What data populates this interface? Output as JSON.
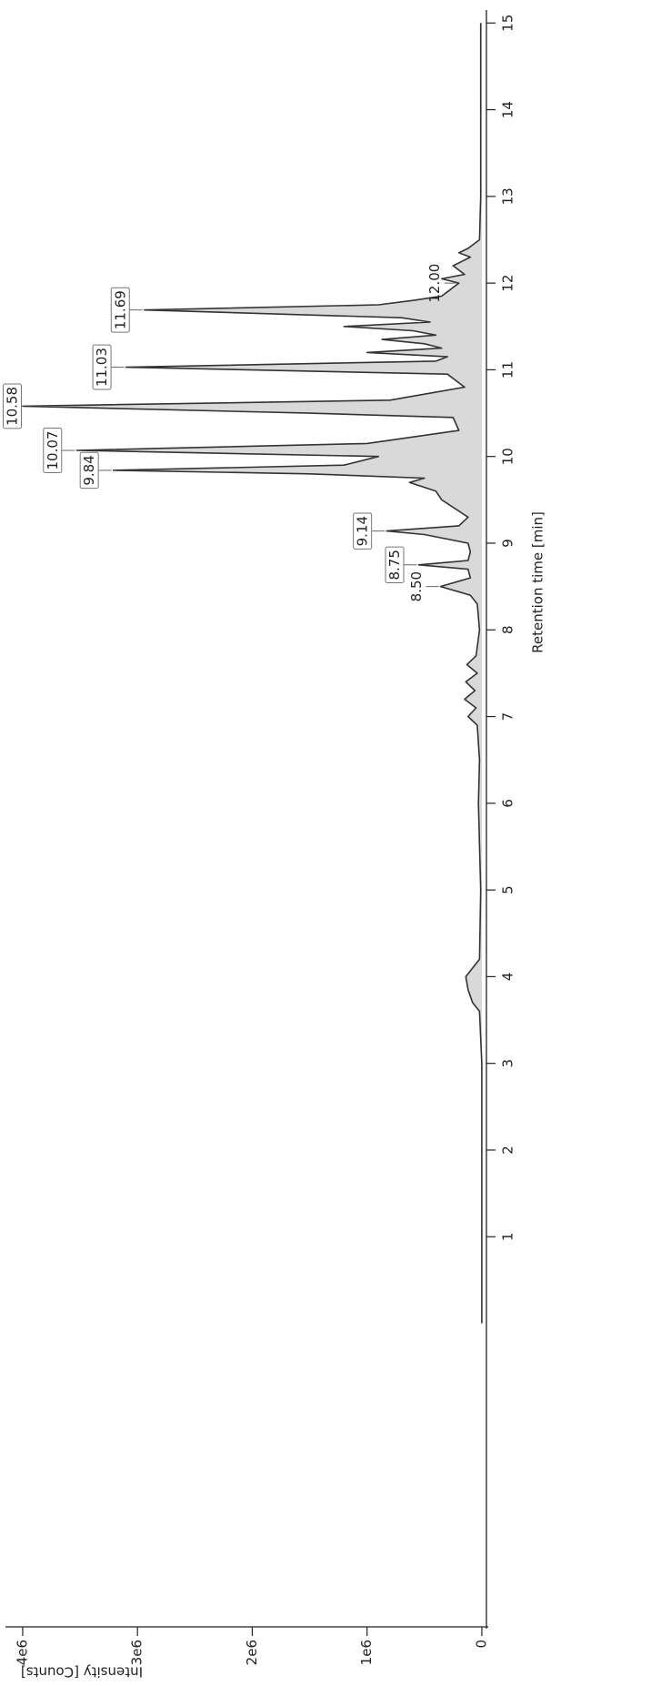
{
  "chart_data": {
    "type": "line",
    "x_label": "Retention time [min]",
    "y_label": "Intensity [Counts]",
    "xlim": [
      -3.5,
      15.15
    ],
    "xticks": [
      1,
      2,
      3,
      4,
      5,
      6,
      7,
      8,
      9,
      10,
      11,
      12,
      13,
      14,
      15
    ],
    "ylim": [
      -40000,
      4150000
    ],
    "yticks": [
      0,
      {
        "value": 1000000,
        "label": "1e6"
      },
      {
        "value": 2000000,
        "label": "2e6"
      },
      {
        "value": 3000000,
        "label": "3e6"
      },
      {
        "value": 4000000,
        "label": "4e6"
      }
    ],
    "x": [
      0,
      0.5,
      1,
      2,
      3,
      3.6,
      3.7,
      3.85,
      4.0,
      4.1,
      4.2,
      5,
      6,
      6.5,
      6.9,
      7.0,
      7.1,
      7.2,
      7.3,
      7.4,
      7.5,
      7.6,
      7.7,
      8.0,
      8.3,
      8.4,
      8.5,
      8.6,
      8.7,
      8.75,
      8.8,
      8.9,
      9.0,
      9.1,
      9.14,
      9.2,
      9.3,
      9.5,
      9.6,
      9.7,
      9.75,
      9.8,
      9.84,
      9.9,
      10.0,
      10.07,
      10.15,
      10.3,
      10.45,
      10.5,
      10.58,
      10.65,
      10.8,
      10.95,
      11.03,
      11.1,
      11.15,
      11.2,
      11.25,
      11.3,
      11.35,
      11.4,
      11.45,
      11.5,
      11.55,
      11.6,
      11.69,
      11.75,
      11.8,
      11.85,
      11.9,
      12.0,
      12.05,
      12.1,
      12.2,
      12.3,
      12.35,
      12.4,
      12.5,
      13,
      14,
      15
    ],
    "series": [
      {
        "color": "#333333",
        "values": [
          0,
          0,
          0,
          0,
          0,
          20000,
          80000,
          120000,
          140000,
          80000,
          20000,
          10000,
          30000,
          20000,
          40000,
          120000,
          50000,
          150000,
          60000,
          140000,
          40000,
          130000,
          50000,
          20000,
          40000,
          100000,
          360000,
          100000,
          120000,
          550000,
          120000,
          100000,
          120000,
          500000,
          830000,
          200000,
          120000,
          350000,
          400000,
          630000,
          500000,
          1500000,
          3210000,
          1200000,
          900000,
          3530000,
          1000000,
          200000,
          250000,
          1500000,
          4000000,
          800000,
          150000,
          300000,
          3100000,
          400000,
          300000,
          1000000,
          350000,
          500000,
          870000,
          400000,
          600000,
          1200000,
          450000,
          700000,
          2940000,
          900000,
          600000,
          350000,
          300000,
          200000,
          350000,
          150000,
          250000,
          100000,
          200000,
          120000,
          20000,
          10000,
          10000,
          10000
        ]
      }
    ],
    "fill_color": "#d9d9d9",
    "annotations": [
      {
        "text": "8.50",
        "x": 8.5,
        "y": 360000,
        "boxed": false
      },
      {
        "text": "8.75",
        "x": 8.75,
        "y": 550000,
        "boxed": true
      },
      {
        "text": "9.14",
        "x": 9.14,
        "y": 830000,
        "boxed": true
      },
      {
        "text": "9.84",
        "x": 9.84,
        "y": 3210000,
        "boxed": true
      },
      {
        "text": "10.07",
        "x": 10.07,
        "y": 3530000,
        "boxed": true
      },
      {
        "text": "10.58",
        "x": 10.58,
        "y": 4000000,
        "boxed": true
      },
      {
        "text": "11.03",
        "x": 11.03,
        "y": 3100000,
        "boxed": true
      },
      {
        "text": "11.69",
        "x": 11.69,
        "y": 2940000,
        "boxed": true
      },
      {
        "text": "12.00",
        "x": 12.0,
        "y": 200000,
        "boxed": false
      }
    ]
  }
}
